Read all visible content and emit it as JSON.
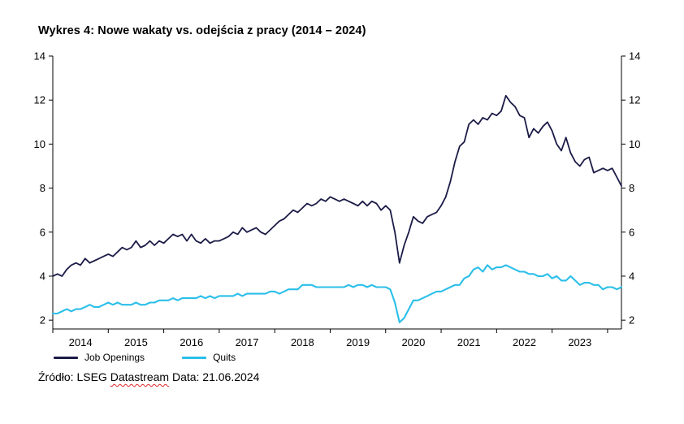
{
  "title": "Wykres 4: Nowe wakaty vs. odejścia z pracy (2014 – 2024)",
  "legend": [
    {
      "label": "Job Openings",
      "color": "#1b1b47"
    },
    {
      "label": "Quits",
      "color": "#2bbfe9"
    }
  ],
  "source": {
    "prefix": "Źródło: LSEG ",
    "datastream_word": "Datastream",
    "suffix": " Data: 21.06.2024"
  },
  "chart_data": {
    "type": "line",
    "title": "Wykres 4: Nowe wakaty vs. odejścia z pracy (2014 – 2024)",
    "xlabel": "",
    "ylabel": "",
    "x_start_year": 2014,
    "x_frequency": "monthly",
    "ylim": [
      1.6,
      14
    ],
    "yticks": [
      2,
      4,
      6,
      8,
      10,
      12,
      14
    ],
    "xticks_years": [
      2014,
      2015,
      2016,
      2017,
      2018,
      2019,
      2020,
      2021,
      2022,
      2023,
      2024
    ],
    "xlabels_years": [
      2014,
      2015,
      2016,
      2017,
      2018,
      2019,
      2020,
      2021,
      2022,
      2023
    ],
    "grid": false,
    "legend_position": "bottom-left",
    "dual_axis": true,
    "series": [
      {
        "name": "Job Openings",
        "color": "#1b1b47",
        "values": [
          4.0,
          4.1,
          4.0,
          4.3,
          4.5,
          4.6,
          4.5,
          4.8,
          4.6,
          4.7,
          4.8,
          4.9,
          5.0,
          4.9,
          5.1,
          5.3,
          5.2,
          5.3,
          5.6,
          5.3,
          5.4,
          5.6,
          5.4,
          5.6,
          5.5,
          5.7,
          5.9,
          5.8,
          5.9,
          5.6,
          5.9,
          5.6,
          5.5,
          5.7,
          5.5,
          5.6,
          5.6,
          5.7,
          5.8,
          6.0,
          5.9,
          6.2,
          6.0,
          6.1,
          6.2,
          6.0,
          5.9,
          6.1,
          6.3,
          6.5,
          6.6,
          6.8,
          7.0,
          6.9,
          7.1,
          7.3,
          7.2,
          7.3,
          7.5,
          7.4,
          7.6,
          7.5,
          7.4,
          7.5,
          7.4,
          7.3,
          7.2,
          7.4,
          7.2,
          7.4,
          7.3,
          7.0,
          7.2,
          7.0,
          6.0,
          4.6,
          5.4,
          6.0,
          6.7,
          6.5,
          6.4,
          6.7,
          6.8,
          6.9,
          7.2,
          7.6,
          8.3,
          9.2,
          9.9,
          10.1,
          10.9,
          11.1,
          10.9,
          11.2,
          11.1,
          11.4,
          11.3,
          11.5,
          12.2,
          11.9,
          11.7,
          11.3,
          11.2,
          10.3,
          10.7,
          10.5,
          10.8,
          11.0,
          10.6,
          10.0,
          9.7,
          10.3,
          9.6,
          9.2,
          9.0,
          9.3,
          9.4,
          8.7,
          8.8,
          8.9,
          8.8,
          8.9,
          8.5,
          8.1
        ]
      },
      {
        "name": "Quits",
        "color": "#2bbfe9",
        "values": [
          2.3,
          2.3,
          2.4,
          2.5,
          2.4,
          2.5,
          2.5,
          2.6,
          2.7,
          2.6,
          2.6,
          2.7,
          2.8,
          2.7,
          2.8,
          2.7,
          2.7,
          2.7,
          2.8,
          2.7,
          2.7,
          2.8,
          2.8,
          2.9,
          2.9,
          2.9,
          3.0,
          2.9,
          3.0,
          3.0,
          3.0,
          3.0,
          3.1,
          3.0,
          3.1,
          3.0,
          3.1,
          3.1,
          3.1,
          3.1,
          3.2,
          3.1,
          3.2,
          3.2,
          3.2,
          3.2,
          3.2,
          3.3,
          3.3,
          3.2,
          3.3,
          3.4,
          3.4,
          3.4,
          3.6,
          3.6,
          3.6,
          3.5,
          3.5,
          3.5,
          3.5,
          3.5,
          3.5,
          3.5,
          3.6,
          3.5,
          3.6,
          3.6,
          3.5,
          3.6,
          3.5,
          3.5,
          3.5,
          3.4,
          2.8,
          1.9,
          2.1,
          2.5,
          2.9,
          2.9,
          3.0,
          3.1,
          3.2,
          3.3,
          3.3,
          3.4,
          3.5,
          3.6,
          3.6,
          3.9,
          4.0,
          4.3,
          4.4,
          4.2,
          4.5,
          4.3,
          4.4,
          4.4,
          4.5,
          4.4,
          4.3,
          4.2,
          4.2,
          4.1,
          4.1,
          4.0,
          4.0,
          4.1,
          3.9,
          4.0,
          3.8,
          3.8,
          4.0,
          3.8,
          3.6,
          3.7,
          3.7,
          3.6,
          3.6,
          3.4,
          3.5,
          3.5,
          3.4,
          3.5
        ]
      }
    ]
  }
}
